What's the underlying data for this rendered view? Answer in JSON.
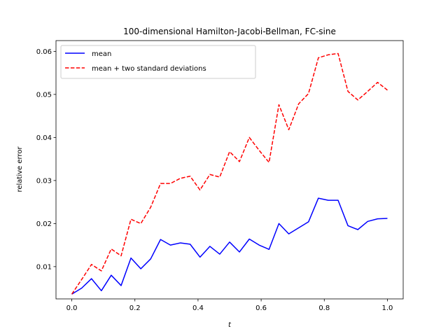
{
  "chart_data": {
    "type": "line",
    "title": "100-dimensional Hamilton-Jacobi-Bellman, FC-sine",
    "xlabel": "t",
    "ylabel": "relative error",
    "xlim": [
      -0.05,
      1.05
    ],
    "ylim": [
      0.0025,
      0.0625
    ],
    "xticks": [
      0.0,
      0.2,
      0.4,
      0.6,
      0.8,
      1.0
    ],
    "xtick_labels": [
      "0.0",
      "0.2",
      "0.4",
      "0.6",
      "0.8",
      "1.0"
    ],
    "yticks": [
      0.01,
      0.02,
      0.03,
      0.04,
      0.05,
      0.06
    ],
    "ytick_labels": [
      "0.01",
      "0.02",
      "0.03",
      "0.04",
      "0.05",
      "0.06"
    ],
    "grid": false,
    "legend_position": "top-left",
    "x": [
      0.0,
      0.03125,
      0.0625,
      0.09375,
      0.125,
      0.15625,
      0.1875,
      0.21875,
      0.25,
      0.28125,
      0.3125,
      0.34375,
      0.375,
      0.40625,
      0.4375,
      0.46875,
      0.5,
      0.53125,
      0.5625,
      0.59375,
      0.625,
      0.65625,
      0.6875,
      0.71875,
      0.75,
      0.78125,
      0.8125,
      0.84375,
      0.875,
      0.90625,
      0.9375,
      0.96875,
      1.0
    ],
    "series": [
      {
        "name": "mean",
        "color": "#0000ff",
        "style": "solid",
        "values": [
          0.0036,
          0.005,
          0.0072,
          0.0044,
          0.008,
          0.0056,
          0.012,
          0.0095,
          0.0118,
          0.0163,
          0.015,
          0.0155,
          0.0152,
          0.0122,
          0.0147,
          0.0129,
          0.0157,
          0.0134,
          0.0164,
          0.015,
          0.014,
          0.02,
          0.0176,
          0.019,
          0.0204,
          0.0259,
          0.0254,
          0.0254,
          0.0195,
          0.0186,
          0.0205,
          0.0211,
          0.0212
        ]
      },
      {
        "name": "mean + two standard deviations",
        "color": "#ff0000",
        "style": "dashed",
        "values": [
          0.0036,
          0.007,
          0.0105,
          0.009,
          0.0141,
          0.0125,
          0.021,
          0.02,
          0.0238,
          0.0293,
          0.0293,
          0.0305,
          0.031,
          0.0278,
          0.0314,
          0.0308,
          0.0367,
          0.0344,
          0.04,
          0.037,
          0.0342,
          0.0476,
          0.0418,
          0.0478,
          0.0502,
          0.0585,
          0.0592,
          0.0595,
          0.0507,
          0.0487,
          0.0507,
          0.0528,
          0.051
        ]
      }
    ]
  }
}
